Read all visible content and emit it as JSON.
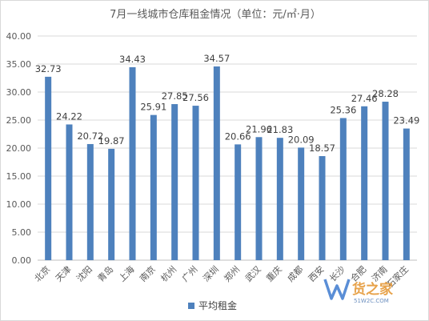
{
  "chart_data": {
    "type": "bar",
    "title": "7月一线城市仓库租金情况（单位：元/㎡·月）",
    "xlabel": "",
    "ylabel": "",
    "categories": [
      "北京",
      "天津",
      "沈阳",
      "青岛",
      "上海",
      "南京",
      "杭州",
      "广州",
      "深圳",
      "郑州",
      "武汉",
      "重庆",
      "成都",
      "西安",
      "长沙",
      "合肥",
      "济南",
      "石家庄"
    ],
    "series": [
      {
        "name": "平均租金",
        "values": [
          32.73,
          24.22,
          20.72,
          19.87,
          34.43,
          25.91,
          27.85,
          27.56,
          34.57,
          20.66,
          21.96,
          21.83,
          20.09,
          18.57,
          25.36,
          27.46,
          28.28,
          23.49
        ],
        "labels": [
          "32.73",
          "24.22",
          "20.72",
          "19.87",
          "34.43",
          "25.91",
          "27.85",
          "27.56",
          "34.57",
          "20.66",
          "21.96",
          "21.83",
          "20.09",
          "18.57",
          "25.36",
          "27.46",
          "28.28",
          "23.49"
        ]
      }
    ],
    "yticks": [
      "0.00",
      "5.00",
      "10.00",
      "15.00",
      "20.00",
      "25.00",
      "30.00",
      "35.00",
      "40.00"
    ],
    "ylim": [
      0,
      40
    ],
    "grid": true,
    "legend_position": "bottom",
    "colors": {
      "bar": "#4e81bd",
      "grid": "#d9d9d9",
      "axis": "#bfbfbf"
    }
  },
  "watermark": {
    "text": "货之家",
    "url": "51W2C.COM",
    "colors": {
      "brand": "#e7a24a",
      "logo": "#5a8ed6"
    }
  }
}
